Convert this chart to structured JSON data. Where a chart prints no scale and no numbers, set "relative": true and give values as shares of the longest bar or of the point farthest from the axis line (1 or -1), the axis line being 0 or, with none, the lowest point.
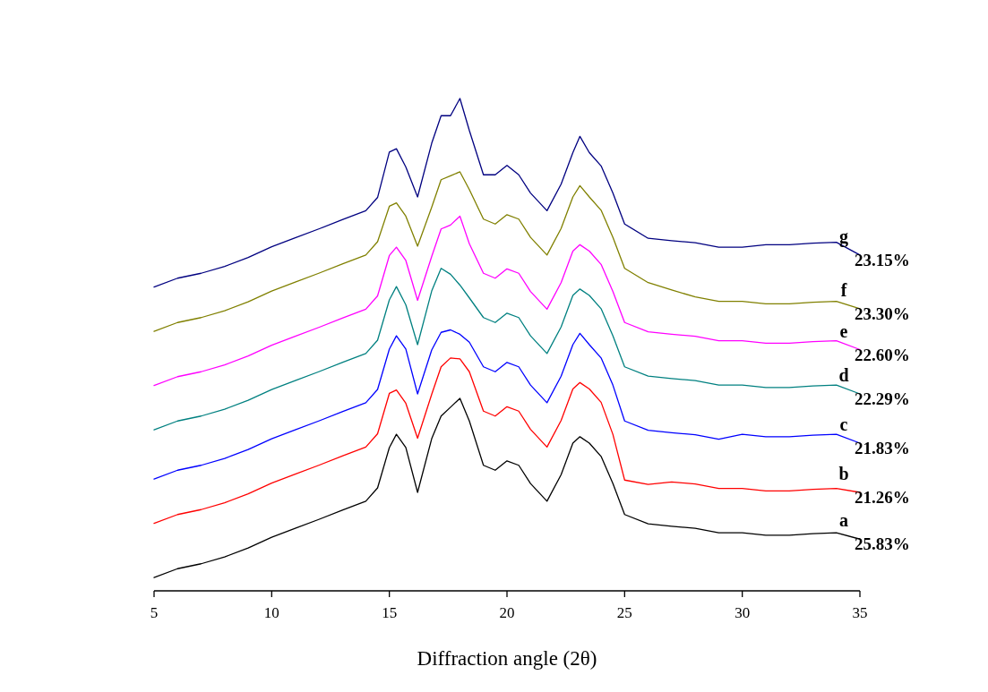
{
  "chart_data": {
    "type": "line",
    "relative": true,
    "xlabel": "Diffraction angle (2θ)",
    "xlim": [
      5,
      35
    ],
    "xticks": [
      5,
      10,
      15,
      20,
      25,
      30,
      35
    ],
    "grid": false,
    "tick_labels": "x",
    "x": [
      5,
      6,
      7,
      8,
      9,
      10,
      11,
      12,
      13,
      14,
      14.5,
      15,
      15.3,
      15.7,
      16.2,
      16.8,
      17.2,
      17.6,
      18,
      18.4,
      19,
      19.5,
      20,
      20.5,
      21,
      21.7,
      22.3,
      22.8,
      23.1,
      23.5,
      24,
      24.5,
      25,
      26,
      27,
      28,
      29,
      30,
      31,
      32,
      33,
      34,
      35
    ],
    "series": [
      {
        "name": "a",
        "color": "#000000",
        "values": [
          0.027,
          0.045,
          0.055,
          0.069,
          0.087,
          0.109,
          0.127,
          0.145,
          0.164,
          0.182,
          0.209,
          0.291,
          0.318,
          0.291,
          0.2,
          0.309,
          0.355,
          0.373,
          0.391,
          0.345,
          0.255,
          0.245,
          0.264,
          0.255,
          0.218,
          0.182,
          0.236,
          0.3,
          0.313,
          0.3,
          0.273,
          0.218,
          0.155,
          0.136,
          0.131,
          0.127,
          0.118,
          0.118,
          0.113,
          0.113,
          0.116,
          0.118,
          0.105
        ]
      },
      {
        "name": "b",
        "color": "#ff0000",
        "values": [
          0.137,
          0.155,
          0.165,
          0.179,
          0.197,
          0.219,
          0.237,
          0.255,
          0.274,
          0.292,
          0.319,
          0.401,
          0.408,
          0.381,
          0.31,
          0.399,
          0.455,
          0.473,
          0.471,
          0.445,
          0.365,
          0.355,
          0.374,
          0.365,
          0.328,
          0.292,
          0.346,
          0.41,
          0.423,
          0.41,
          0.383,
          0.318,
          0.225,
          0.216,
          0.221,
          0.217,
          0.208,
          0.208,
          0.203,
          0.203,
          0.206,
          0.208,
          0.2
        ]
      },
      {
        "name": "c",
        "color": "#0000ff",
        "values": [
          0.227,
          0.245,
          0.255,
          0.269,
          0.287,
          0.309,
          0.327,
          0.345,
          0.364,
          0.382,
          0.409,
          0.491,
          0.518,
          0.491,
          0.4,
          0.489,
          0.525,
          0.53,
          0.521,
          0.505,
          0.455,
          0.445,
          0.464,
          0.455,
          0.418,
          0.382,
          0.436,
          0.5,
          0.523,
          0.5,
          0.473,
          0.418,
          0.345,
          0.326,
          0.321,
          0.317,
          0.308,
          0.318,
          0.313,
          0.313,
          0.316,
          0.318,
          0.3
        ]
      },
      {
        "name": "d",
        "color": "#008080",
        "values": [
          0.327,
          0.345,
          0.355,
          0.369,
          0.387,
          0.409,
          0.427,
          0.445,
          0.464,
          0.482,
          0.509,
          0.591,
          0.618,
          0.581,
          0.5,
          0.609,
          0.655,
          0.643,
          0.621,
          0.595,
          0.555,
          0.545,
          0.564,
          0.555,
          0.518,
          0.482,
          0.536,
          0.6,
          0.613,
          0.6,
          0.573,
          0.518,
          0.455,
          0.436,
          0.431,
          0.427,
          0.418,
          0.418,
          0.413,
          0.413,
          0.416,
          0.418,
          0.4
        ]
      },
      {
        "name": "e",
        "color": "#ff00ff",
        "values": [
          0.417,
          0.435,
          0.445,
          0.459,
          0.477,
          0.499,
          0.517,
          0.535,
          0.554,
          0.572,
          0.599,
          0.681,
          0.698,
          0.671,
          0.59,
          0.679,
          0.735,
          0.743,
          0.761,
          0.705,
          0.645,
          0.635,
          0.654,
          0.645,
          0.608,
          0.572,
          0.626,
          0.69,
          0.703,
          0.69,
          0.663,
          0.608,
          0.545,
          0.526,
          0.521,
          0.517,
          0.508,
          0.508,
          0.503,
          0.503,
          0.506,
          0.508,
          0.49
        ]
      },
      {
        "name": "f",
        "color": "#808000",
        "values": [
          0.527,
          0.545,
          0.555,
          0.569,
          0.587,
          0.609,
          0.627,
          0.645,
          0.664,
          0.682,
          0.709,
          0.781,
          0.788,
          0.761,
          0.7,
          0.779,
          0.835,
          0.843,
          0.851,
          0.815,
          0.755,
          0.745,
          0.764,
          0.755,
          0.718,
          0.682,
          0.736,
          0.8,
          0.823,
          0.8,
          0.773,
          0.718,
          0.655,
          0.626,
          0.611,
          0.597,
          0.588,
          0.588,
          0.583,
          0.583,
          0.586,
          0.588,
          0.573
        ]
      },
      {
        "name": "g",
        "color": "#000080",
        "values": [
          0.617,
          0.635,
          0.645,
          0.659,
          0.677,
          0.699,
          0.717,
          0.735,
          0.754,
          0.772,
          0.799,
          0.891,
          0.898,
          0.861,
          0.8,
          0.909,
          0.965,
          0.965,
          1.0,
          0.935,
          0.845,
          0.845,
          0.864,
          0.845,
          0.808,
          0.772,
          0.826,
          0.89,
          0.923,
          0.89,
          0.863,
          0.808,
          0.745,
          0.716,
          0.711,
          0.707,
          0.698,
          0.698,
          0.703,
          0.703,
          0.706,
          0.708,
          0.682
        ]
      }
    ],
    "annotations": [
      "25.83%",
      "21.26%",
      "21.83%",
      "22.29%",
      "22.60%",
      "23.30%",
      "23.15%"
    ]
  }
}
